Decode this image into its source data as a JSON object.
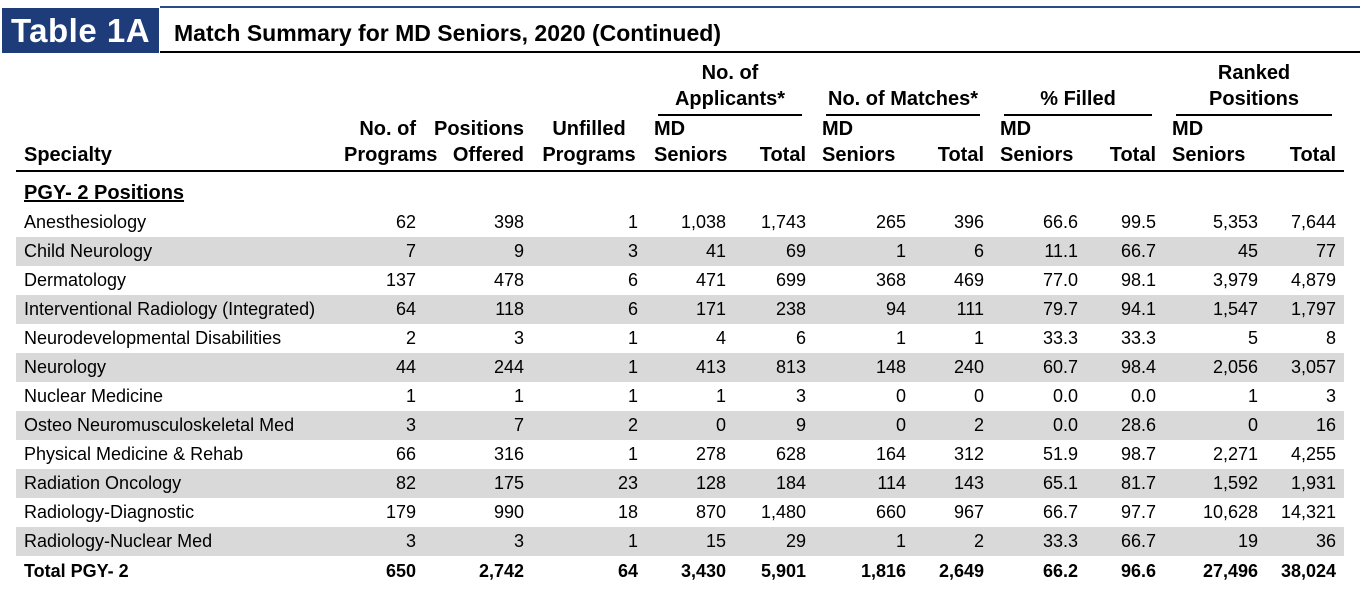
{
  "header": {
    "badge": "Table 1A",
    "title": "Match Summary for MD Seniors, 2020 (Continued)"
  },
  "columns": {
    "specialty": "Specialty",
    "programs": "No. of Programs",
    "positions": "Positions Offered",
    "unfilled": "Unfilled Programs",
    "groups": {
      "applicants": "No. of Applicants*",
      "matches": "No. of Matches*",
      "filled": "% Filled",
      "ranked": "Ranked Positions"
    },
    "md_seniors": "MD Seniors",
    "total": "Total"
  },
  "section_title": "PGY- 2 Positions",
  "rows": [
    {
      "specialty": "Anesthesiology",
      "programs": "62",
      "positions": "398",
      "unfilled": "1",
      "app_md": "1,038",
      "app_total": "1,743",
      "match_md": "265",
      "match_total": "396",
      "fill_md": "66.6",
      "fill_total": "99.5",
      "rank_md": "5,353",
      "rank_total": "7,644"
    },
    {
      "specialty": "Child Neurology",
      "programs": "7",
      "positions": "9",
      "unfilled": "3",
      "app_md": "41",
      "app_total": "69",
      "match_md": "1",
      "match_total": "6",
      "fill_md": "11.1",
      "fill_total": "66.7",
      "rank_md": "45",
      "rank_total": "77"
    },
    {
      "specialty": "Dermatology",
      "programs": "137",
      "positions": "478",
      "unfilled": "6",
      "app_md": "471",
      "app_total": "699",
      "match_md": "368",
      "match_total": "469",
      "fill_md": "77.0",
      "fill_total": "98.1",
      "rank_md": "3,979",
      "rank_total": "4,879"
    },
    {
      "specialty": "Interventional Radiology (Integrated)",
      "programs": "64",
      "positions": "118",
      "unfilled": "6",
      "app_md": "171",
      "app_total": "238",
      "match_md": "94",
      "match_total": "111",
      "fill_md": "79.7",
      "fill_total": "94.1",
      "rank_md": "1,547",
      "rank_total": "1,797"
    },
    {
      "specialty": "Neurodevelopmental Disabilities",
      "programs": "2",
      "positions": "3",
      "unfilled": "1",
      "app_md": "4",
      "app_total": "6",
      "match_md": "1",
      "match_total": "1",
      "fill_md": "33.3",
      "fill_total": "33.3",
      "rank_md": "5",
      "rank_total": "8"
    },
    {
      "specialty": "Neurology",
      "programs": "44",
      "positions": "244",
      "unfilled": "1",
      "app_md": "413",
      "app_total": "813",
      "match_md": "148",
      "match_total": "240",
      "fill_md": "60.7",
      "fill_total": "98.4",
      "rank_md": "2,056",
      "rank_total": "3,057"
    },
    {
      "specialty": "Nuclear Medicine",
      "programs": "1",
      "positions": "1",
      "unfilled": "1",
      "app_md": "1",
      "app_total": "3",
      "match_md": "0",
      "match_total": "0",
      "fill_md": "0.0",
      "fill_total": "0.0",
      "rank_md": "1",
      "rank_total": "3"
    },
    {
      "specialty": "Osteo Neuromusculoskeletal Med",
      "programs": "3",
      "positions": "7",
      "unfilled": "2",
      "app_md": "0",
      "app_total": "9",
      "match_md": "0",
      "match_total": "2",
      "fill_md": "0.0",
      "fill_total": "28.6",
      "rank_md": "0",
      "rank_total": "16"
    },
    {
      "specialty": "Physical Medicine & Rehab",
      "programs": "66",
      "positions": "316",
      "unfilled": "1",
      "app_md": "278",
      "app_total": "628",
      "match_md": "164",
      "match_total": "312",
      "fill_md": "51.9",
      "fill_total": "98.7",
      "rank_md": "2,271",
      "rank_total": "4,255"
    },
    {
      "specialty": "Radiation Oncology",
      "programs": "82",
      "positions": "175",
      "unfilled": "23",
      "app_md": "128",
      "app_total": "184",
      "match_md": "114",
      "match_total": "143",
      "fill_md": "65.1",
      "fill_total": "81.7",
      "rank_md": "1,592",
      "rank_total": "1,931"
    },
    {
      "specialty": "Radiology-Diagnostic",
      "programs": "179",
      "positions": "990",
      "unfilled": "18",
      "app_md": "870",
      "app_total": "1,480",
      "match_md": "660",
      "match_total": "967",
      "fill_md": "66.7",
      "fill_total": "97.7",
      "rank_md": "10,628",
      "rank_total": "14,321"
    },
    {
      "specialty": "Radiology-Nuclear Med",
      "programs": "3",
      "positions": "3",
      "unfilled": "1",
      "app_md": "15",
      "app_total": "29",
      "match_md": "1",
      "match_total": "2",
      "fill_md": "33.3",
      "fill_total": "66.7",
      "rank_md": "19",
      "rank_total": "36"
    }
  ],
  "total": {
    "specialty": "Total PGY- 2",
    "programs": "650",
    "positions": "2,742",
    "unfilled": "64",
    "app_md": "3,430",
    "app_total": "5,901",
    "match_md": "1,816",
    "match_total": "2,649",
    "fill_md": "66.2",
    "fill_total": "96.6",
    "rank_md": "27,496",
    "rank_total": "38,024"
  }
}
